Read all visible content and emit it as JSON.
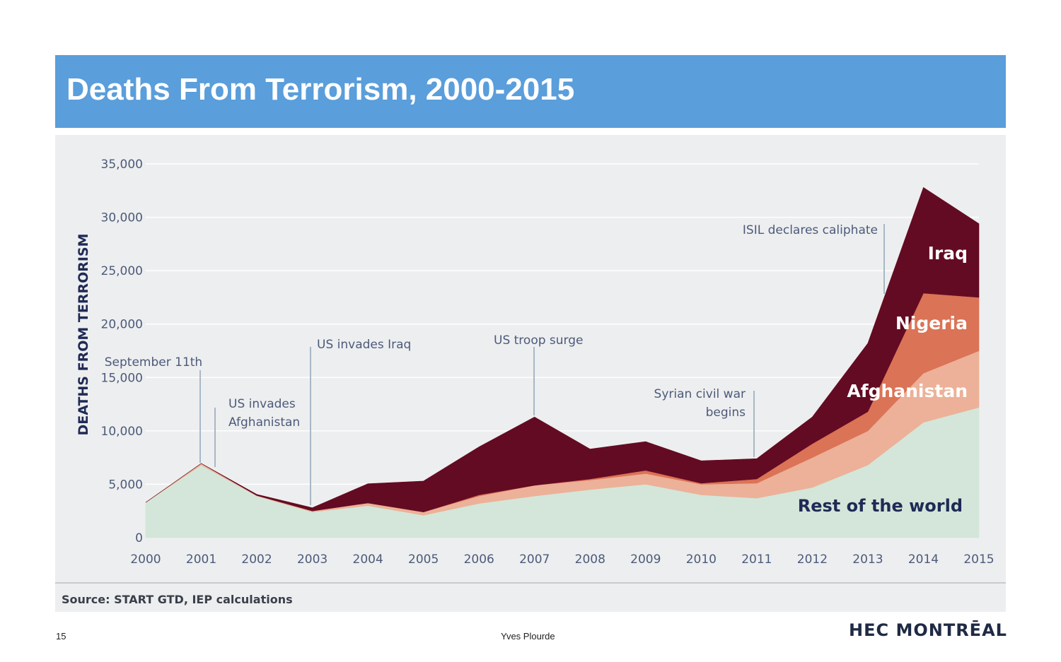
{
  "slide": {
    "title": "Deaths From Terrorism, 2000-2015",
    "page_number": "15",
    "author": "Yves Plourde",
    "logo_text": "HEC MONTRĒAL"
  },
  "chart_data": {
    "type": "area",
    "title": "Deaths From Terrorism, 2000-2015",
    "xlabel": "",
    "ylabel": "DEATHS FROM TERRORISM",
    "source": "Source: START GTD, IEP calculations",
    "stacked": true,
    "grid": true,
    "ylim": [
      0,
      35000
    ],
    "yticks": [
      0,
      5000,
      10000,
      15000,
      20000,
      25000,
      30000,
      35000
    ],
    "ytick_labels": [
      "0",
      "5,000",
      "10,000",
      "15,000",
      "20,000",
      "25,000",
      "30,000",
      "35,000"
    ],
    "x": [
      "2000",
      "2001",
      "2002",
      "2003",
      "2004",
      "2005",
      "2006",
      "2007",
      "2008",
      "2009",
      "2010",
      "2011",
      "2012",
      "2013",
      "2014",
      "2015"
    ],
    "series": [
      {
        "name": "Rest of the world",
        "color": "#d3e6d9",
        "label_color": "#1f2a55",
        "values": [
          3300,
          6800,
          3900,
          2400,
          3000,
          2100,
          3200,
          3900,
          4500,
          5000,
          4000,
          3700,
          4700,
          6800,
          10800,
          12200
        ]
      },
      {
        "name": "Afghanistan",
        "color": "#ecb198",
        "label_color": "#ffffff",
        "values": [
          0,
          150,
          50,
          100,
          250,
          300,
          700,
          1000,
          900,
          1000,
          1000,
          1400,
          2800,
          3200,
          4600,
          5300
        ]
      },
      {
        "name": "Nigeria",
        "color": "#db7356",
        "label_color": "#ffffff",
        "values": [
          0,
          0,
          0,
          0,
          0,
          0,
          100,
          0,
          100,
          300,
          100,
          400,
          1300,
          1800,
          7500,
          5000
        ]
      },
      {
        "name": "Iraq",
        "color": "#630b23",
        "label_color": "#ffffff",
        "values": [
          0,
          0,
          100,
          300,
          1800,
          2900,
          4500,
          6400,
          2800,
          2700,
          2100,
          1900,
          2500,
          6400,
          9900,
          6900
        ]
      }
    ],
    "annotations": [
      {
        "text": "September 11th",
        "x": 2001
      },
      {
        "text": "US invades Afghanistan",
        "lines": [
          "US invades",
          "Afghanistan"
        ],
        "x": 2001
      },
      {
        "text": "US invades Iraq",
        "x": 2003
      },
      {
        "text": "US troop surge",
        "x": 2007
      },
      {
        "text": "Syrian civil war begins",
        "lines": [
          "Syrian civil war",
          "begins"
        ],
        "x": 2011
      },
      {
        "text": "ISIL declares caliphate",
        "x": 2014
      }
    ]
  }
}
